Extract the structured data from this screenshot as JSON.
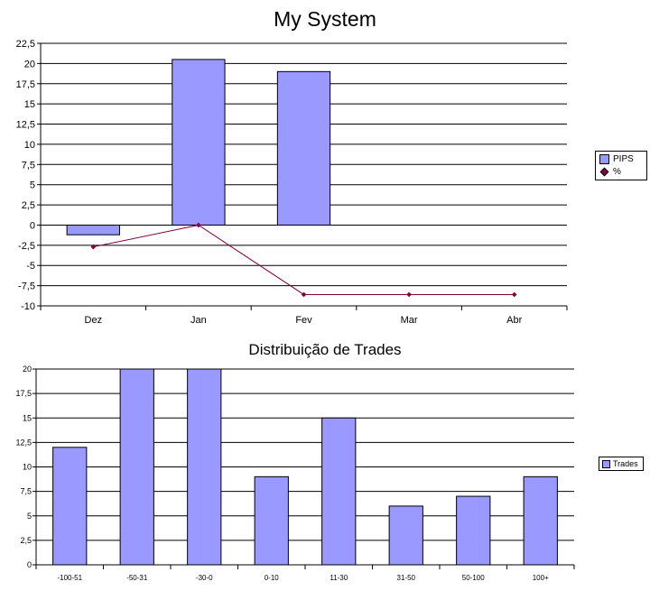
{
  "chart_data": [
    {
      "type": "bar",
      "title": "My System",
      "categories": [
        "Dez",
        "Jan",
        "Fev",
        "Mar",
        "Abr"
      ],
      "series": [
        {
          "name": "PIPS",
          "kind": "bar",
          "color": "#9999ff",
          "values": [
            -1.2,
            20.5,
            19.0,
            null,
            null
          ]
        },
        {
          "name": "%",
          "kind": "line",
          "color": "#800040",
          "values": [
            -2.7,
            0.0,
            -8.6,
            -8.6,
            -8.6
          ]
        }
      ],
      "ylim": [
        -10,
        22.5
      ],
      "yticks": [
        "22,5",
        "20",
        "17,5",
        "15",
        "12,5",
        "10",
        "7,5",
        "5",
        "2,5",
        "0",
        "-2,5",
        "-5",
        "-7,5",
        "-10"
      ],
      "grid": true,
      "legend": "right"
    },
    {
      "type": "bar",
      "title": "Distribuição de Trades",
      "categories": [
        "-100-51",
        "-50-31",
        "-30-0",
        "0-10",
        "11-30",
        "31-50",
        "50-100",
        "100+"
      ],
      "series": [
        {
          "name": "Trades",
          "color": "#9999ff",
          "values": [
            12,
            20,
            20,
            9,
            15,
            6,
            7,
            9
          ]
        }
      ],
      "ylim": [
        0,
        20
      ],
      "yticks": [
        "20",
        "17,5",
        "15",
        "12,5",
        "10",
        "7,5",
        "5",
        "2,5",
        "0"
      ],
      "grid": true,
      "legend": "right"
    }
  ]
}
